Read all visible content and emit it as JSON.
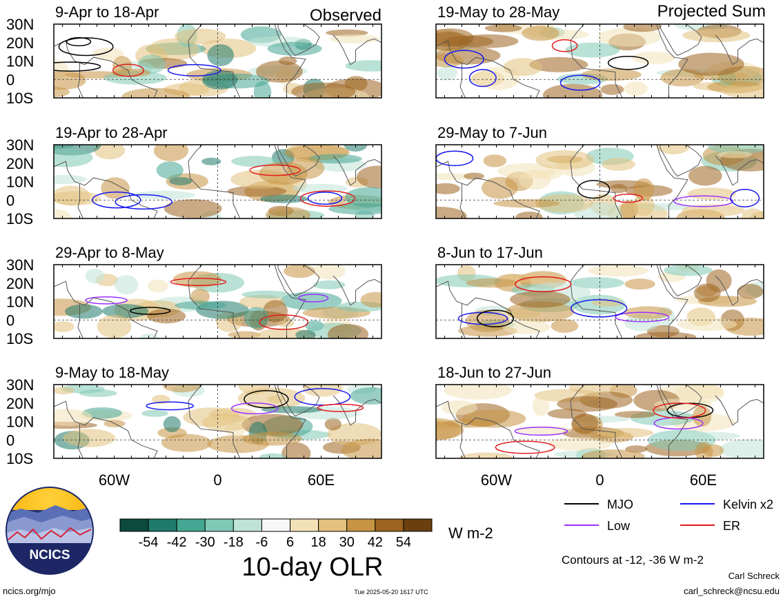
{
  "chart_data": {
    "type": "heatmap",
    "title": "10-day OLR",
    "units": "W m-2",
    "headers": {
      "left": "Observed",
      "right": "Projected Sum"
    },
    "lat_labels": [
      "30N",
      "20N",
      "10N",
      "0",
      "10S"
    ],
    "lon_labels": [
      "60W",
      "0",
      "60E"
    ],
    "lat_range": [
      -10,
      30
    ],
    "lon_range": [
      -95,
      95
    ],
    "colorbar": {
      "labels": [
        "-54",
        "-42",
        "-30",
        "-18",
        "-6",
        "6",
        "18",
        "30",
        "42",
        "54"
      ],
      "colors": [
        "#0c4a3e",
        "#1f7a6b",
        "#45a693",
        "#7fc8b4",
        "#bfe4d7",
        "#f7f7f7",
        "#f3e2b8",
        "#e2c17d",
        "#c79443",
        "#9c6420",
        "#6b3f0f"
      ]
    },
    "legend": [
      {
        "label": "MJO",
        "color": "#000000"
      },
      {
        "label": "Kelvin x2",
        "color": "#1515ee"
      },
      {
        "label": "Low",
        "color": "#9b30ff"
      },
      {
        "label": "ER",
        "color": "#e31a1c"
      }
    ],
    "contour_note": "Contours at -12, -36 W m-2",
    "panels": [
      {
        "period": "9-Apr to 18-Apr",
        "column": "left"
      },
      {
        "period": "19-Apr to 28-Apr",
        "column": "left"
      },
      {
        "period": "29-Apr to 8-May",
        "column": "left"
      },
      {
        "period": "9-May to 18-May",
        "column": "left"
      },
      {
        "period": "19-May to 28-May",
        "column": "right"
      },
      {
        "period": "29-May to 7-Jun",
        "column": "right"
      },
      {
        "period": "8-Jun to 17-Jun",
        "column": "right"
      },
      {
        "period": "18-Jun to 27-Jun",
        "column": "right"
      }
    ]
  },
  "footer": {
    "logo_text": "NCICS",
    "url": "ncics.org/mjo",
    "timestamp": "Tue 2025-05-20 1617 UTC",
    "author": "Carl Schreck",
    "email": "carl_schreck@ncsu.edu"
  }
}
